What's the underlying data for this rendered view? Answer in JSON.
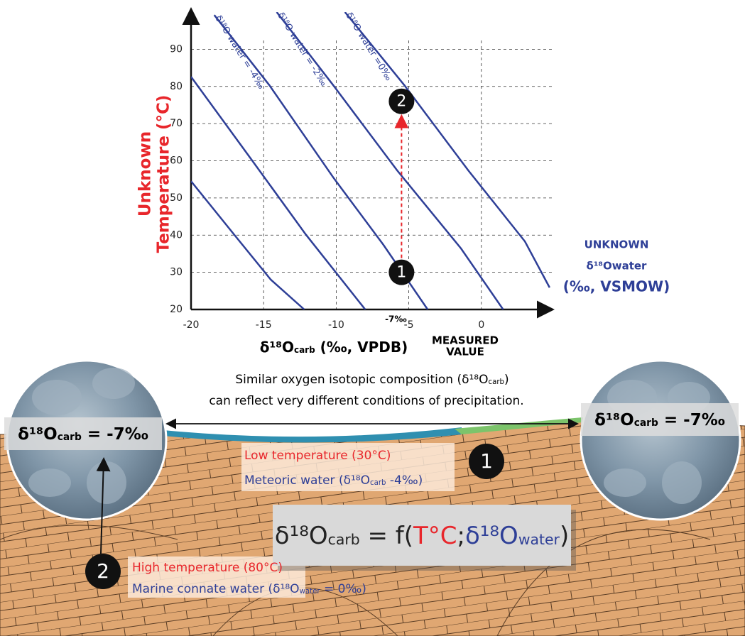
{
  "chart_data": {
    "type": "line",
    "ylabel": [
      "Unknown",
      "Temperature (°C)"
    ],
    "xlabel": {
      "text": "δ¹⁸O",
      "sub": "carb",
      "end": " (‰, VPDB)"
    },
    "water_axis_label": [
      "UNKNOWN",
      "δ¹⁸Owater",
      "(‰, VSMOW)"
    ],
    "xlim": [
      -20,
      5
    ],
    "ylim": [
      20,
      100
    ],
    "xticks": [
      -20,
      -15,
      -10,
      -5,
      0
    ],
    "yticks": [
      20,
      30,
      40,
      50,
      60,
      70,
      80,
      90
    ],
    "grid": true,
    "series": [
      {
        "name": null,
        "color": "#2e3f97",
        "x": [
          -20,
          -17,
          -14.5,
          -12.2
        ],
        "values": [
          54.5,
          40,
          28,
          20
        ]
      },
      {
        "name": null,
        "color": "#2e3f97",
        "x": [
          -20,
          -16,
          -12.1,
          -8
        ],
        "values": [
          82.6,
          61.2,
          40.2,
          20
        ]
      },
      {
        "name": "δ¹⁸O water = -4‰",
        "color": "#2e3f97",
        "x": [
          -18.4,
          -14.6,
          -10.2,
          -6.75,
          -3.7
        ],
        "values": [
          99.2,
          80.3,
          55.5,
          37.4,
          20
        ]
      },
      {
        "name": "δ¹⁸O water = -2‰",
        "color": "#2e3f97",
        "x": [
          -14.1,
          -10.2,
          -5.8,
          -1.4,
          1.5
        ],
        "values": [
          100,
          80.3,
          57.4,
          36.4,
          20
        ]
      },
      {
        "name": "δ¹⁸O water =0‰",
        "color": "#2e3f97",
        "x": [
          -9.4,
          -5.3,
          -0.9,
          3.0,
          4.7
        ],
        "values": [
          100,
          80.3,
          57.4,
          38.3,
          25.9
        ]
      }
    ],
    "measured": {
      "label": "-7‰",
      "text": [
        "MEASURED",
        "VALUE"
      ]
    },
    "markers": [
      {
        "label": "1",
        "x": -5.5,
        "y": 30
      },
      {
        "label": "2",
        "x": -5.5,
        "y": 76
      }
    ],
    "arrow_color": "#e8262b"
  },
  "diagram": {
    "caption_line1": {
      "text": "Similar oxygen isotopic composition (δ¹⁸O",
      "sub": "carb",
      "end": ")"
    },
    "caption_line2": "can reflect very different conditions of precipitation.",
    "sample_left": {
      "text": "δ¹⁸O",
      "sub": "carb",
      "end": " = -7‰"
    },
    "sample_right": {
      "text": "δ¹⁸O",
      "sub": "carb",
      "end": " = -7‰"
    },
    "scenario1": {
      "marker": "1",
      "temp": "Low temperature (30°C)",
      "water": {
        "text": "Meteoric water (δ¹⁸O",
        "sub": "carb",
        "end": " -4‰)"
      }
    },
    "scenario2": {
      "marker": "2",
      "temp": "High temperature (80°C)",
      "water": {
        "text": "Marine connate water (δ¹⁸O",
        "sub": "water",
        "end": " = 0‰)"
      }
    },
    "formula": {
      "lhs": {
        "text": "δ¹⁸O",
        "sub": "carb"
      },
      "eq": " = f(",
      "temp": "T°C",
      "sep": ";",
      "water": {
        "text": "δ¹⁸O",
        "sub": "water"
      },
      "end": ")"
    }
  }
}
